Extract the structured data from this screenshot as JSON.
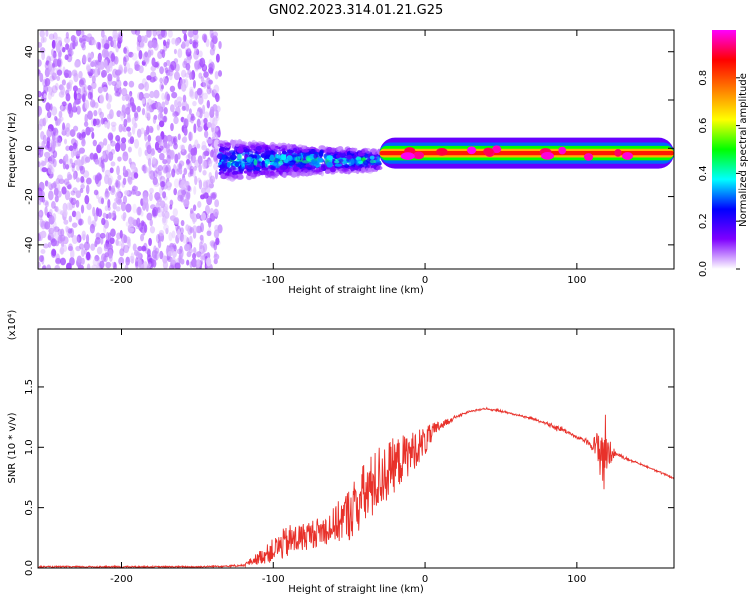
{
  "title": "GN02.2023.314.01.21.G25",
  "chart_data": [
    {
      "type": "heatmap",
      "xlabel": "Height of straight line (km)",
      "ylabel": "Frequency (Hz)",
      "xlim": [
        -255,
        164
      ],
      "ylim": [
        -50,
        49
      ],
      "xticks": [
        -200,
        -100,
        0,
        100
      ],
      "xtick_labels": [
        "-200",
        "-100",
        "0",
        "100"
      ],
      "yticks": [
        -40,
        -20,
        0,
        20,
        40
      ],
      "ytick_labels": [
        "-40",
        "-20",
        "0",
        "20",
        "40"
      ],
      "colorbar": {
        "label": "Normalized spectral amplitude",
        "range": [
          0,
          1
        ],
        "ticks": [
          0.0,
          0.2,
          0.4,
          0.6,
          0.8
        ],
        "tick_labels": [
          "0.0",
          "0.2",
          "0.4",
          "0.6",
          "0.8"
        ],
        "colormap": [
          "#ffffff",
          "#7f00ff",
          "#0000ff",
          "#00ffff",
          "#00ff00",
          "#ffff00",
          "#ff7f00",
          "#ff0000",
          "#ff00ff"
        ]
      },
      "regions": [
        {
          "x_range": [
            -255,
            -135
          ],
          "freq_range": [
            -50,
            49
          ],
          "amplitude": 0.08,
          "pattern": "scattered noise"
        },
        {
          "x_range": [
            -135,
            -30
          ],
          "freq_center": -5,
          "freq_halfwidth": 8,
          "amplitude": 0.35,
          "pattern": "broad signal"
        },
        {
          "x_range": [
            -30,
            164
          ],
          "freq_center": -2,
          "freq_halfwidth": 2,
          "amplitude": 0.85,
          "pattern": "narrow strong line"
        }
      ]
    },
    {
      "type": "line",
      "xlabel": "Height of straight line (km)",
      "ylabel": "SNR (10 * v/v)",
      "y_scale_label": "(x10⁴)",
      "xlim": [
        -255,
        164
      ],
      "ylim": [
        0,
        1.98
      ],
      "xticks": [
        -200,
        -100,
        0,
        100
      ],
      "xtick_labels": [
        "-200",
        "-100",
        "0",
        "100"
      ],
      "yticks": [
        0.0,
        0.5,
        1.0,
        1.5
      ],
      "ytick_labels": [
        "0.0",
        "0.5",
        "1.0",
        "1.5"
      ],
      "color": "#e8312a",
      "x": [
        -255,
        -200,
        -150,
        -120,
        -110,
        -100,
        -90,
        -80,
        -70,
        -60,
        -50,
        -40,
        -30,
        -20,
        -10,
        0,
        10,
        20,
        30,
        40,
        50,
        60,
        70,
        80,
        85,
        90,
        95,
        100,
        105,
        110,
        115,
        118,
        120,
        125,
        130,
        140,
        150,
        164
      ],
      "y": [
        0.01,
        0.01,
        0.01,
        0.02,
        0.08,
        0.15,
        0.22,
        0.26,
        0.3,
        0.35,
        0.45,
        0.6,
        0.75,
        0.85,
        0.95,
        1.05,
        1.18,
        1.25,
        1.3,
        1.32,
        1.3,
        1.27,
        1.24,
        1.2,
        1.17,
        1.15,
        1.12,
        1.08,
        1.06,
        1.02,
        0.98,
        0.96,
        0.96,
        0.95,
        0.92,
        0.87,
        0.82,
        0.74
      ],
      "noise_amplitude": [
        0,
        0,
        0,
        0.01,
        0.1,
        0.2,
        0.28,
        0.24,
        0.24,
        0.3,
        0.45,
        0.55,
        0.55,
        0.45,
        0.35,
        0.25,
        0.08,
        0.02,
        0.01,
        0.01,
        0.01,
        0.01,
        0.01,
        0.02,
        0.06,
        0.05,
        0.03,
        0.02,
        0.03,
        0.08,
        0.4,
        0.9,
        0.3,
        0.05,
        0.02,
        0.01,
        0.01,
        0.01
      ]
    }
  ]
}
